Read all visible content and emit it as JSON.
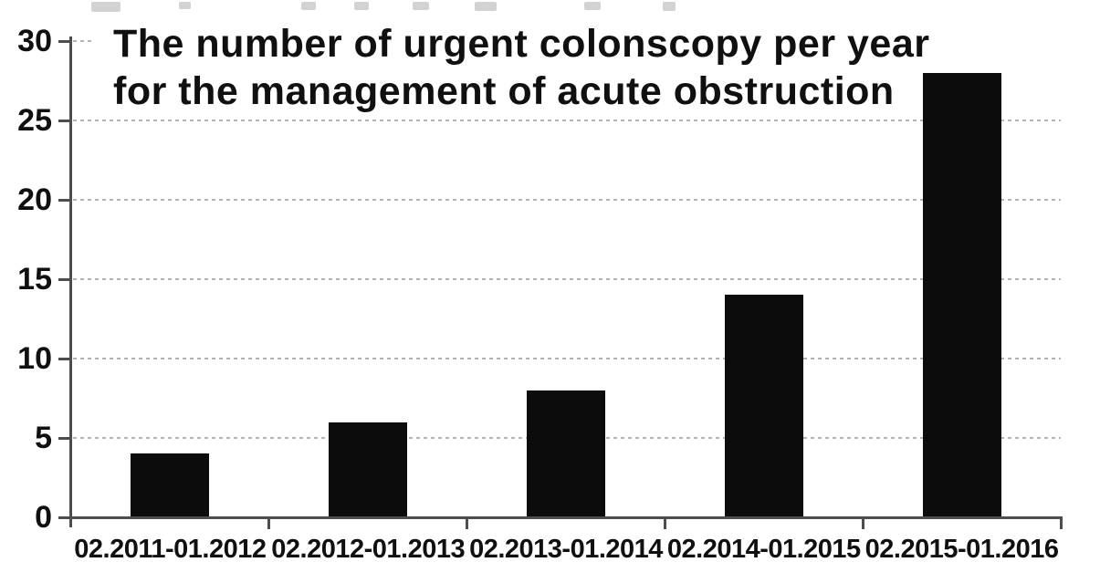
{
  "chart_data": {
    "type": "bar",
    "title": "The number of urgent colonscopy per year for the management of acute obstruction",
    "title_lines": [
      "The number of urgent colonscopy per year",
      "for the management of acute obstruction"
    ],
    "categories": [
      "02.2011-01.2012",
      "02.2012-01.2013",
      "02.2013-01.2014",
      "02.2014-01.2015",
      "02.2015-01.2016"
    ],
    "values": [
      4,
      6,
      8,
      14,
      28
    ],
    "xlabel": "",
    "ylabel": "",
    "ylim": [
      0,
      30
    ],
    "yticks": [
      0,
      5,
      10,
      15,
      20,
      25,
      30
    ],
    "grid": "horizontal-dashed",
    "legend": "none",
    "bar_color": "#0c0c0c",
    "axis_color": "#4d4d4d",
    "gridline_color": "#b4b4b4",
    "text_color": "#101010",
    "background_color": "#ffffff"
  }
}
